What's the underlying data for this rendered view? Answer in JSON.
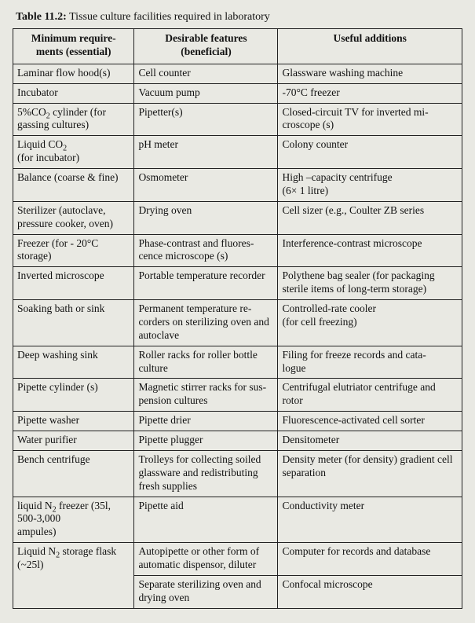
{
  "caption_label": "Table 11.2:",
  "caption_text": "Tissue culture facilities required in laboratory",
  "columns": [
    "Minimum require-\nments (essential)",
    "Desirable features\n(beneficial)",
    "Useful additions"
  ],
  "rows": [
    [
      "Laminar flow hood(s)",
      "Cell counter",
      "Glassware washing machine"
    ],
    [
      "Incubator",
      "Vacuum  pump",
      "-70°C freezer"
    ],
    [
      "5%CO₂ cylinder (for gassing cultures)",
      "Pipetter(s)",
      "Closed-circuit TV for inverted mi-\ncroscope (s)"
    ],
    [
      "Liquid CO₂\n(for incubator)",
      "pH meter",
      "Colony counter"
    ],
    [
      "Balance (coarse & fine)",
      "Osmometer",
      "High –capacity centrifuge\n(6× 1 litre)"
    ],
    [
      "Sterilizer (autoclave, pressure cooker, oven)",
      "Drying oven",
      "Cell sizer (e.g., Coulter ZB series"
    ],
    [
      "Freezer (for - 20°C storage)",
      "Phase-contrast and fluores-\ncence microscope (s)",
      "Interference-contrast microscope"
    ],
    [
      "Inverted microscope",
      "Portable temperature recorder",
      "Polythene bag sealer (for packaging sterile items of long-term storage)"
    ],
    [
      "Soaking bath or sink",
      "Permanent temperature re-\ncorders on sterilizing oven and autoclave",
      "Controlled-rate cooler\n(for cell freezing)"
    ],
    [
      "Deep washing sink",
      "Roller racks for roller bottle culture",
      "Filing for freeze records and cata-\nlogue"
    ],
    [
      "Pipette cylinder (s)",
      "Magnetic stirrer racks for sus-\npension cultures",
      "Centrifugal elutriator centrifuge and rotor"
    ],
    [
      "Pipette washer",
      "Pipette drier",
      "Fluorescence-activated cell sorter"
    ],
    [
      "Water purifier",
      "Pipette plugger",
      "Densitometer"
    ],
    [
      "Bench centrifuge",
      "Trolleys for collecting soiled glassware and redistributing fresh supplies",
      "Density meter (for density) gradient cell separation"
    ],
    [
      "liquid N₂ freezer (35l, 500-3,000\nampules)",
      "Pipette aid",
      "Conductivity meter"
    ],
    [
      "__ROWSPAN2__Liquid N₂ storage flask (~25l)",
      "Autopipette or other form of automatic dispensor, diluter",
      "Computer for records and database"
    ],
    [
      "__SPANCONT__",
      "Separate sterilizing oven and drying oven",
      "Confocal microscope"
    ]
  ],
  "border_color": "#222",
  "background_color": "#e9e9e3",
  "font_family": "Times New Roman"
}
